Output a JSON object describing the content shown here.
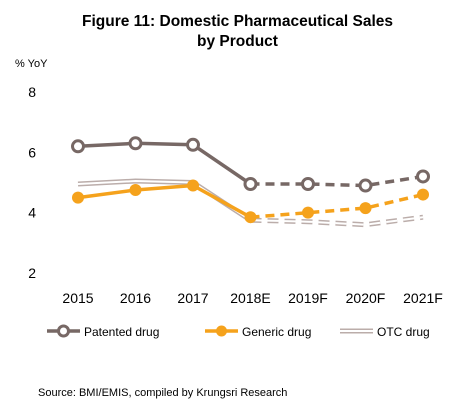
{
  "title_line1": "Figure 11: Domestic Pharmaceutical Sales",
  "title_line2": "by Product",
  "source": "Source: BMI/EMIS,  compiled by Krungsri Research",
  "chart_data": {
    "type": "line",
    "title": "Figure 11: Domestic Pharmaceutical Sales by Product",
    "ylabel": "% YoY",
    "xlabel": "",
    "categories": [
      "2015",
      "2016",
      "2017",
      "2018E",
      "2019F",
      "2020F",
      "2021F"
    ],
    "ylim": [
      2,
      8
    ],
    "yticks": [
      "2",
      "4",
      "6",
      "8"
    ],
    "grid": false,
    "legend_position": "bottom",
    "forecast_from_category": "2018E",
    "series": [
      {
        "name": "Patented drug",
        "values": [
          6.2,
          6.3,
          6.25,
          4.95,
          4.95,
          4.9,
          5.2
        ],
        "color": "#776865",
        "marker": "open-circle"
      },
      {
        "name": "Generic drug",
        "values": [
          4.5,
          4.75,
          4.9,
          3.85,
          4.0,
          4.15,
          4.6
        ],
        "color": "#F5A21C",
        "marker": "filled-circle"
      },
      {
        "name": "OTC drug",
        "values": [
          4.95,
          5.05,
          5.0,
          3.75,
          3.7,
          3.6,
          3.85
        ],
        "color": "#BBADAA",
        "marker": "none",
        "style": "double-line"
      }
    ]
  }
}
